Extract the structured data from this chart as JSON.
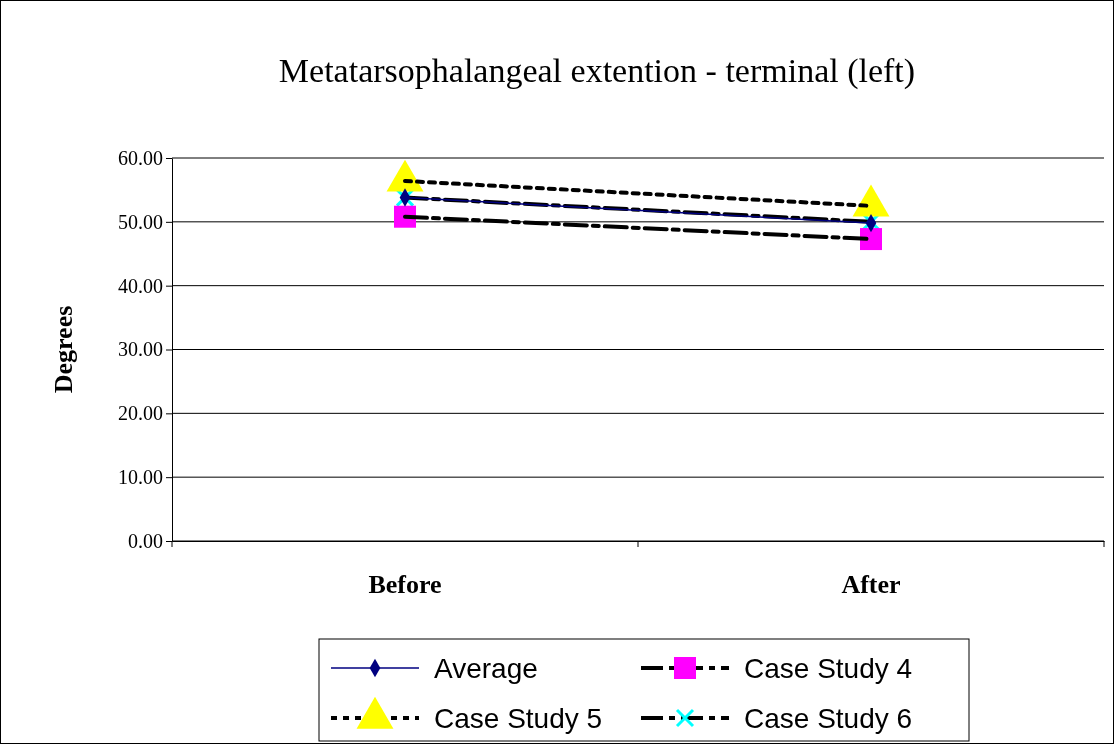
{
  "chart_data": {
    "type": "line",
    "title": "Metatarsophalangeal extention - terminal (left)",
    "ylabel": "Degrees",
    "categories": [
      "Before",
      "After"
    ],
    "series": [
      {
        "name": "Average",
        "color": "#000080",
        "values": [
          53.8,
          49.8
        ],
        "marker": "diamond",
        "line_style": "solid"
      },
      {
        "name": "Case Study 4",
        "color": "#ff00ff",
        "values": [
          50.8,
          47.3
        ],
        "marker": "square",
        "line_style": "dashed"
      },
      {
        "name": "Case Study 5",
        "color": "#ffff00",
        "values": [
          56.4,
          52.5
        ],
        "marker": "triangle",
        "line_style": "dotted"
      },
      {
        "name": "Case Study 6",
        "color": "#00ffff",
        "values": [
          53.8,
          50.0
        ],
        "marker": "cross",
        "line_style": "dashed"
      }
    ],
    "ylim": [
      0,
      60
    ],
    "yticks": [
      {
        "value": 0,
        "label": "0.00"
      },
      {
        "value": 10,
        "label": "10.00"
      },
      {
        "value": 20,
        "label": "20.00"
      },
      {
        "value": 30,
        "label": "30.00"
      },
      {
        "value": 40,
        "label": "40.00"
      },
      {
        "value": 50,
        "label": "50.00"
      },
      {
        "value": 60,
        "label": "60.00"
      }
    ],
    "grid": "y",
    "legend": "bottom"
  }
}
